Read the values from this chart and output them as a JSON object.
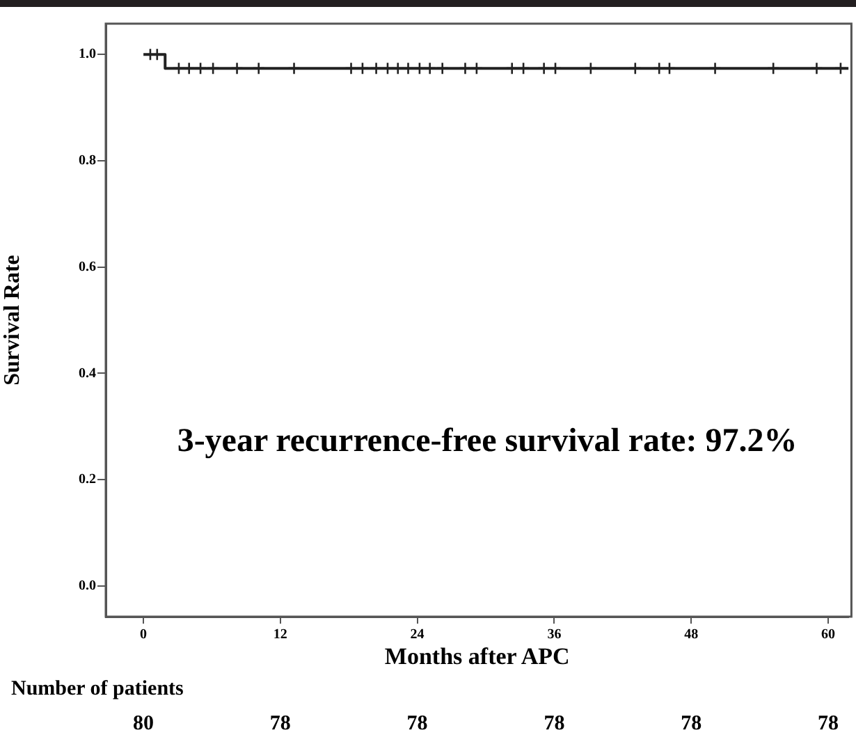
{
  "chart_data": {
    "type": "step",
    "xlabel": "Months after APC",
    "ylabel": "Survival Rate",
    "xlim": [
      -3.3,
      61.8
    ],
    "xticks": [
      0,
      12,
      24,
      36,
      48,
      60
    ],
    "ylim": [
      -0.058,
      1.058
    ],
    "yticks": [
      {
        "value": 0,
        "label": "0.0"
      },
      {
        "value": 0.2,
        "label": "0.2"
      },
      {
        "value": 0.4,
        "label": "0.4"
      },
      {
        "value": 0.6,
        "label": "0.6"
      },
      {
        "value": 0.8,
        "label": "0.8"
      },
      {
        "value": 1,
        "label": "1.0"
      }
    ],
    "grid": false,
    "legend": false,
    "series": [
      {
        "color": "#222222",
        "x": [
          0,
          1.9,
          61.8
        ],
        "values": [
          1.0,
          0.974,
          0.974
        ],
        "marker": "none"
      },
      {
        "type": "scatter",
        "color": "#222222",
        "marker": "cross",
        "x": [
          0.6,
          1.2,
          3.1,
          4.0,
          5.0,
          6.1,
          8.2,
          10.1,
          13.2,
          18.2,
          19.2,
          20.4,
          21.4,
          22.3,
          23.2,
          24.2,
          25.1,
          26.2,
          28.2,
          29.2,
          32.3,
          33.3,
          35.1,
          36.1,
          39.2,
          43.1,
          45.2,
          46.1,
          50.1,
          55.2,
          59.0,
          61.1
        ],
        "values": [
          1.0,
          1.0,
          0.974,
          0.974,
          0.974,
          0.974,
          0.974,
          0.974,
          0.974,
          0.974,
          0.974,
          0.974,
          0.974,
          0.974,
          0.974,
          0.974,
          0.974,
          0.974,
          0.974,
          0.974,
          0.974,
          0.974,
          0.974,
          0.974,
          0.974,
          0.974,
          0.974,
          0.974,
          0.974,
          0.974,
          0.974,
          0.974
        ]
      }
    ],
    "annotations": [
      "3-year recurrence-free survival rate: 97.2%",
      "Number of patients",
      "80",
      "78",
      "78",
      "78",
      "78",
      "78"
    ]
  }
}
